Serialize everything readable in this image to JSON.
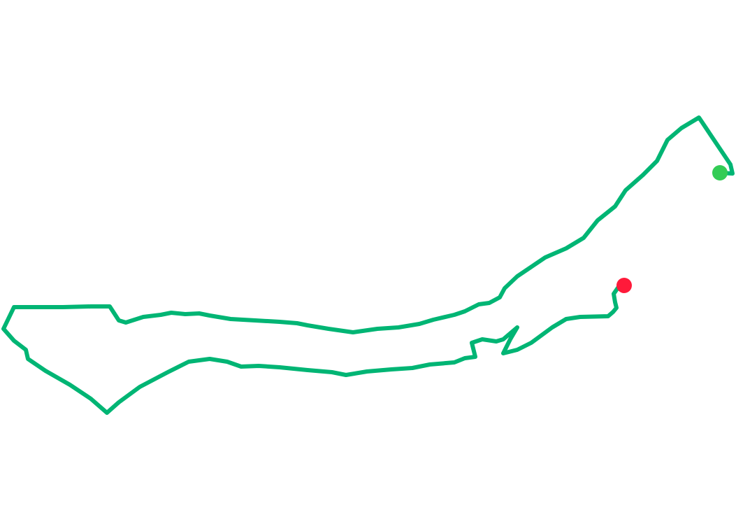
{
  "map": {
    "route_color": "#00b574",
    "start_marker_color": "#33cc55",
    "end_marker_color": "#ff1a3a",
    "background_color": "#ffffff"
  }
}
